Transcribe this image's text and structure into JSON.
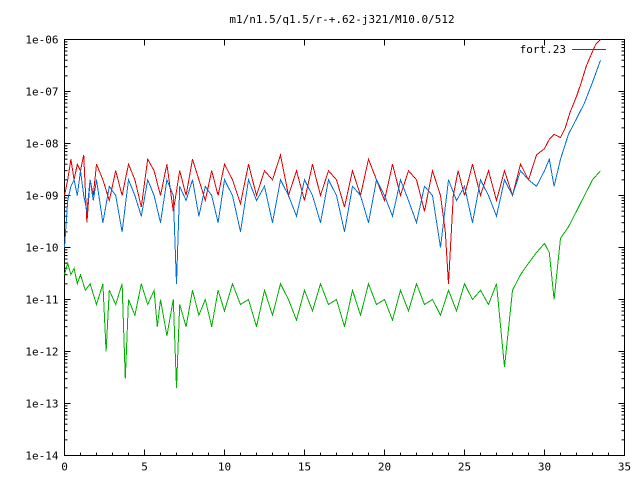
{
  "chart_data": {
    "type": "line",
    "title": "m1/n1.5/q1.5/r-+.62-j321/M10.0/512",
    "xlabel": "",
    "ylabel": "",
    "xlim": [
      0,
      35
    ],
    "ylim": [
      1e-14,
      1e-06
    ],
    "y_scale": "log",
    "grid": false,
    "legend_position": "top-right",
    "x_ticks": [
      0,
      5,
      10,
      15,
      20,
      25,
      30,
      35
    ],
    "x_tick_labels": [
      "0",
      "5",
      "10",
      "15",
      "20",
      "25",
      "30",
      "35"
    ],
    "y_ticks": [
      1e-14,
      1e-13,
      1e-12,
      1e-11,
      1e-10,
      1e-09,
      1e-08,
      1e-07,
      1e-06
    ],
    "y_tick_labels": [
      "1e-14",
      "1e-13",
      "1e-12",
      "1e-11",
      "1e-10",
      "1e-09",
      "1e-08",
      "1e-07",
      "1e-06"
    ],
    "series": [
      {
        "name": "fort.23",
        "color": "#e00000",
        "x": [
          0.0,
          0.2,
          0.4,
          0.6,
          0.8,
          1.0,
          1.2,
          1.4,
          1.6,
          1.8,
          2.0,
          2.4,
          2.8,
          3.2,
          3.6,
          4.0,
          4.4,
          4.8,
          5.2,
          5.6,
          6.0,
          6.4,
          6.8,
          7.2,
          7.6,
          8.0,
          8.4,
          8.8,
          9.2,
          9.6,
          10.0,
          10.5,
          11.0,
          11.5,
          12.0,
          12.5,
          13.0,
          13.5,
          14.0,
          14.5,
          15.0,
          15.5,
          16.0,
          16.5,
          17.0,
          17.5,
          18.0,
          18.5,
          19.0,
          19.5,
          20.0,
          20.5,
          21.0,
          21.5,
          22.0,
          22.5,
          23.0,
          23.5,
          23.8,
          24.0,
          24.3,
          24.6,
          25.0,
          25.5,
          26.0,
          26.5,
          27.0,
          27.5,
          28.0,
          28.5,
          29.0,
          29.5,
          30.0,
          30.3,
          30.6,
          31.0,
          31.3,
          31.6,
          32.0,
          32.3,
          32.6,
          32.9,
          33.2,
          33.5
        ],
        "values": [
          1e-09,
          2e-09,
          5e-09,
          2e-09,
          4e-09,
          3e-09,
          6e-09,
          3e-10,
          2e-09,
          1e-09,
          4e-09,
          2e-09,
          8e-10,
          3e-09,
          1e-09,
          4e-09,
          2e-09,
          6e-10,
          5e-09,
          3e-09,
          1e-09,
          4e-09,
          5e-10,
          3e-09,
          1e-09,
          5e-09,
          2e-09,
          8e-10,
          3e-09,
          1e-09,
          4e-09,
          2e-09,
          7e-10,
          4e-09,
          1e-09,
          3e-09,
          2e-09,
          6e-09,
          1e-09,
          3e-09,
          8e-10,
          4e-09,
          1e-09,
          3e-09,
          2e-09,
          6e-10,
          3e-09,
          1e-09,
          5e-09,
          2e-09,
          8e-10,
          4e-09,
          1e-09,
          3e-09,
          2e-09,
          5e-10,
          3e-09,
          1e-09,
          2e-10,
          2e-11,
          1e-09,
          3e-09,
          1e-09,
          4e-09,
          1e-09,
          3e-09,
          8e-10,
          3e-09,
          1e-09,
          4e-09,
          2e-09,
          6e-09,
          8e-09,
          1.2e-08,
          1.5e-08,
          1.3e-08,
          2e-08,
          4e-08,
          8e-08,
          1.5e-07,
          3e-07,
          5e-07,
          8e-07,
          1.2e-06
        ]
      },
      {
        "name": "",
        "color": "#0070d8",
        "x": [
          0.0,
          0.2,
          0.4,
          0.6,
          0.8,
          1.0,
          1.2,
          1.4,
          1.6,
          1.8,
          2.0,
          2.4,
          2.8,
          3.2,
          3.6,
          4.0,
          4.4,
          4.8,
          5.2,
          5.6,
          6.0,
          6.4,
          6.8,
          7.0,
          7.2,
          7.6,
          8.0,
          8.4,
          8.8,
          9.2,
          9.6,
          10.0,
          10.5,
          11.0,
          11.5,
          12.0,
          12.5,
          13.0,
          13.5,
          14.0,
          14.5,
          15.0,
          15.5,
          16.0,
          16.5,
          17.0,
          17.5,
          18.0,
          18.5,
          19.0,
          19.5,
          20.0,
          20.5,
          21.0,
          21.5,
          22.0,
          22.5,
          23.0,
          23.5,
          24.0,
          24.5,
          25.0,
          25.5,
          26.0,
          26.5,
          27.0,
          27.5,
          28.0,
          28.5,
          29.0,
          29.5,
          30.0,
          30.3,
          30.6,
          31.0,
          31.5,
          32.0,
          32.5,
          33.0,
          33.5
        ],
        "values": [
          1e-10,
          8e-10,
          1.5e-09,
          2e-09,
          1e-09,
          3e-09,
          1e-09,
          5e-10,
          2e-09,
          8e-10,
          2e-09,
          3e-10,
          1.5e-09,
          1e-09,
          2e-10,
          2e-09,
          1e-09,
          4e-10,
          2e-09,
          1e-09,
          3e-10,
          2e-09,
          1e-09,
          2e-11,
          1.5e-09,
          8e-10,
          2e-09,
          4e-10,
          1.5e-09,
          1e-09,
          3e-10,
          2e-09,
          1e-09,
          2e-10,
          2e-09,
          8e-10,
          1.5e-09,
          3e-10,
          2e-09,
          1e-09,
          4e-10,
          2e-09,
          1e-09,
          3e-10,
          2e-09,
          1e-09,
          2e-10,
          1.5e-09,
          1e-09,
          3e-10,
          2e-09,
          1e-09,
          4e-10,
          2e-09,
          8e-10,
          3e-10,
          1.5e-09,
          1e-09,
          1e-10,
          2e-09,
          8e-10,
          1.5e-09,
          3e-10,
          2e-09,
          1e-09,
          4e-10,
          2e-09,
          1e-09,
          3e-09,
          2e-09,
          1.5e-09,
          3e-09,
          5e-09,
          1.5e-09,
          5e-09,
          1.5e-08,
          3e-08,
          6e-08,
          1.5e-07,
          4e-07
        ]
      },
      {
        "name": "",
        "color": "#00b000",
        "x": [
          0.0,
          0.2,
          0.4,
          0.6,
          0.8,
          1.0,
          1.3,
          1.6,
          2.0,
          2.4,
          2.6,
          2.8,
          3.2,
          3.6,
          3.8,
          4.0,
          4.4,
          4.8,
          5.2,
          5.6,
          5.8,
          6.0,
          6.4,
          6.8,
          7.0,
          7.2,
          7.6,
          8.0,
          8.4,
          8.8,
          9.2,
          9.6,
          10.0,
          10.5,
          11.0,
          11.5,
          12.0,
          12.5,
          13.0,
          13.5,
          14.0,
          14.5,
          15.0,
          15.5,
          16.0,
          16.5,
          17.0,
          17.5,
          18.0,
          18.5,
          19.0,
          19.5,
          20.0,
          20.5,
          21.0,
          21.5,
          22.0,
          22.5,
          23.0,
          23.5,
          24.0,
          24.5,
          25.0,
          25.5,
          26.0,
          26.5,
          27.0,
          27.5,
          28.0,
          28.5,
          29.0,
          29.5,
          30.0,
          30.3,
          30.6,
          31.0,
          31.5,
          32.0,
          32.5,
          33.0,
          33.5
        ],
        "values": [
          3e-11,
          5e-11,
          3e-11,
          4e-11,
          2e-11,
          3e-11,
          1.5e-11,
          2e-11,
          8e-12,
          2e-11,
          1e-12,
          1.5e-11,
          8e-12,
          2e-11,
          3e-13,
          1e-11,
          5e-12,
          2e-11,
          8e-12,
          1.5e-11,
          3e-12,
          1e-11,
          2e-12,
          1e-11,
          2e-13,
          8e-12,
          3e-12,
          1.5e-11,
          5e-12,
          1e-11,
          3e-12,
          1.5e-11,
          6e-12,
          2e-11,
          8e-12,
          1e-11,
          3e-12,
          1.5e-11,
          5e-12,
          2e-11,
          1e-11,
          4e-12,
          1.5e-11,
          6e-12,
          2e-11,
          8e-12,
          1e-11,
          3e-12,
          1.5e-11,
          5e-12,
          2e-11,
          8e-12,
          1e-11,
          4e-12,
          1.5e-11,
          6e-12,
          2e-11,
          8e-12,
          1e-11,
          5e-12,
          1.5e-11,
          6e-12,
          2e-11,
          1e-11,
          1.5e-11,
          8e-12,
          2e-11,
          5e-13,
          1.5e-11,
          3e-11,
          5e-11,
          8e-11,
          1.2e-10,
          8e-11,
          1e-11,
          1.5e-10,
          2.5e-10,
          5e-10,
          1e-09,
          2e-09,
          3e-09
        ]
      }
    ]
  }
}
